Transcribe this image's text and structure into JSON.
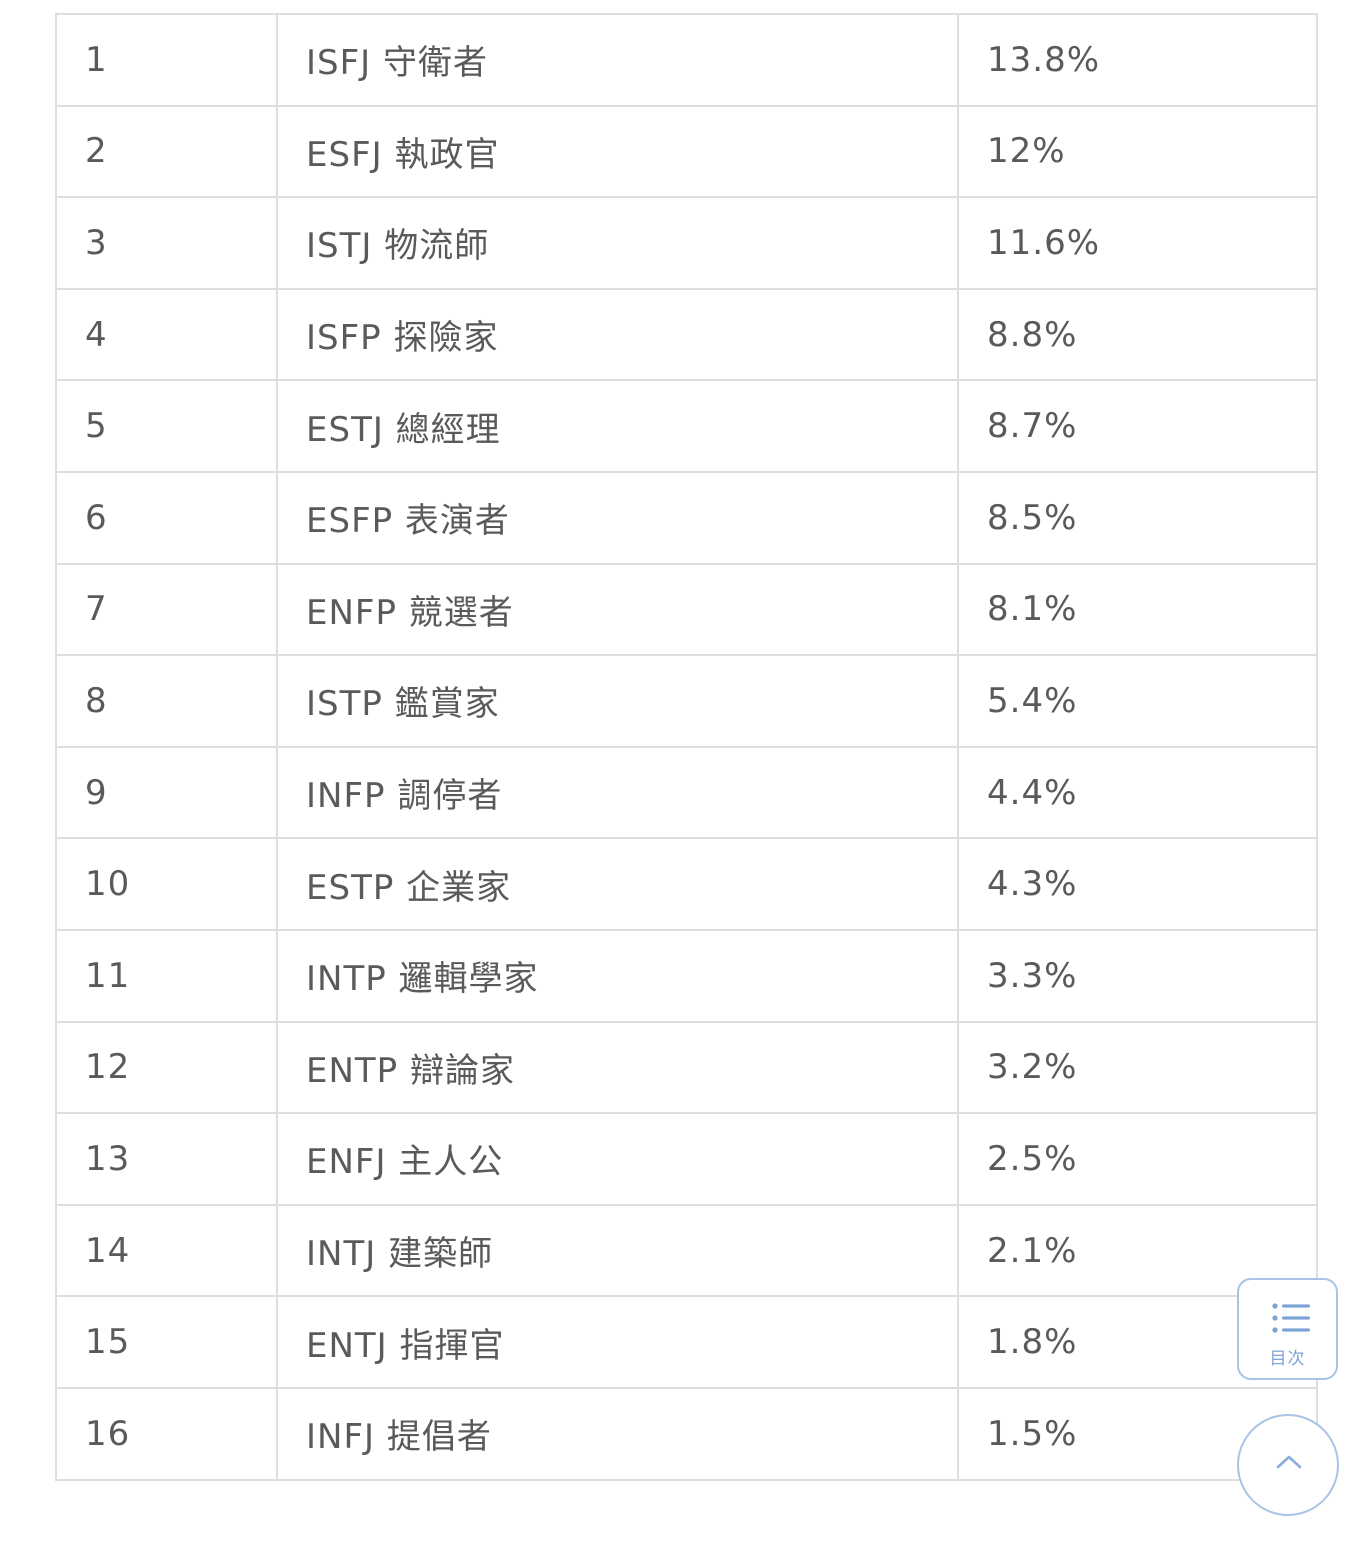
{
  "table": {
    "rows": [
      {
        "rank": "1",
        "type": "ISFJ 守衛者",
        "percent": "13.8%"
      },
      {
        "rank": "2",
        "type": "ESFJ 執政官",
        "percent": "12%"
      },
      {
        "rank": "3",
        "type": "ISTJ 物流師",
        "percent": "11.6%"
      },
      {
        "rank": "4",
        "type": "ISFP 探險家",
        "percent": "8.8%"
      },
      {
        "rank": "5",
        "type": "ESTJ 總經理",
        "percent": "8.7%"
      },
      {
        "rank": "6",
        "type": "ESFP 表演者",
        "percent": "8.5%"
      },
      {
        "rank": "7",
        "type": "ENFP 競選者",
        "percent": "8.1%"
      },
      {
        "rank": "8",
        "type": "ISTP 鑑賞家",
        "percent": "5.4%"
      },
      {
        "rank": "9",
        "type": "INFP 調停者",
        "percent": "4.4%"
      },
      {
        "rank": "10",
        "type": "ESTP 企業家",
        "percent": "4.3%"
      },
      {
        "rank": "11",
        "type": "INTP 邏輯學家",
        "percent": "3.3%"
      },
      {
        "rank": "12",
        "type": "ENTP 辯論家",
        "percent": "3.2%"
      },
      {
        "rank": "13",
        "type": "ENFJ 主人公",
        "percent": "2.5%"
      },
      {
        "rank": "14",
        "type": "INTJ 建築師",
        "percent": "2.1%"
      },
      {
        "rank": "15",
        "type": "ENTJ 指揮官",
        "percent": "1.8%"
      },
      {
        "rank": "16",
        "type": "INFJ 提倡者",
        "percent": "1.5%"
      }
    ]
  },
  "floating": {
    "toc_label": "目次",
    "toc_icon": "list-icon",
    "top_icon": "chevron-up-icon",
    "accent_color": "#a9c3e6"
  }
}
